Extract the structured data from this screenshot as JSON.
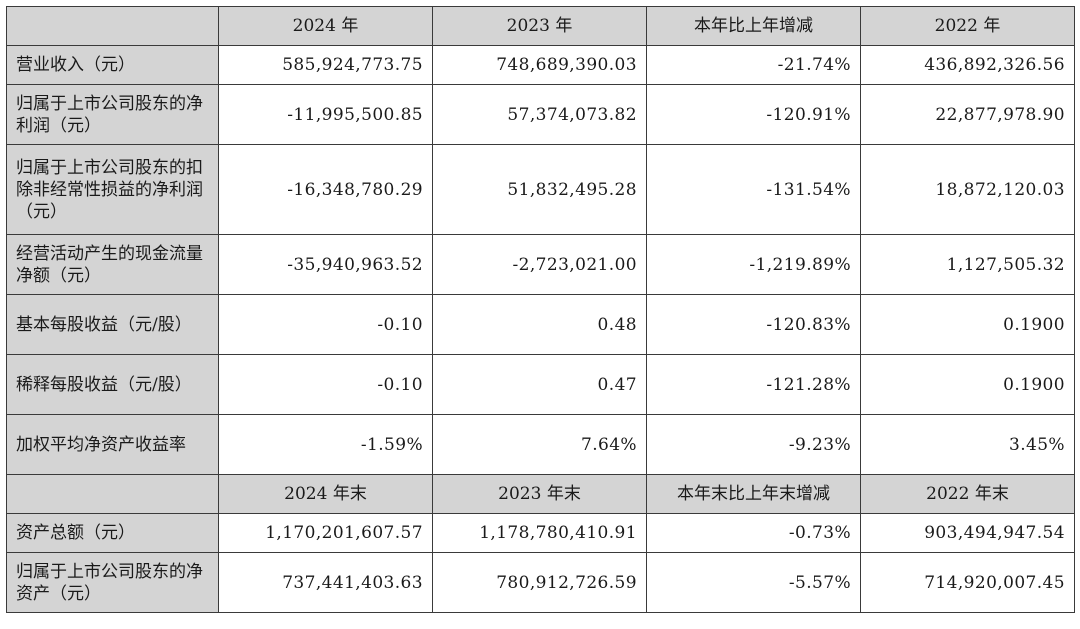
{
  "header_top": [
    "",
    "2024 年",
    "2023 年",
    "本年比上年增减",
    "2022 年"
  ],
  "rows_top": [
    {
      "label": "营业收入（元）",
      "v2024": "585,924,773.75",
      "v2023": "748,689,390.03",
      "change": "-21.74%",
      "v2022": "436,892,326.56"
    },
    {
      "label": "归属于上市公司股东的净利润（元）",
      "v2024": "-11,995,500.85",
      "v2023": "57,374,073.82",
      "change": "-120.91%",
      "v2022": "22,877,978.90"
    },
    {
      "label": "归属于上市公司股东的扣除非经常性损益的净利润（元）",
      "v2024": "-16,348,780.29",
      "v2023": "51,832,495.28",
      "change": "-131.54%",
      "v2022": "18,872,120.03"
    },
    {
      "label": "经营活动产生的现金流量净额（元）",
      "v2024": "-35,940,963.52",
      "v2023": "-2,723,021.00",
      "change": "-1,219.89%",
      "v2022": "1,127,505.32"
    },
    {
      "label": "基本每股收益（元/股）",
      "v2024": "-0.10",
      "v2023": "0.48",
      "change": "-120.83%",
      "v2022": "0.1900"
    },
    {
      "label": "稀释每股收益（元/股）",
      "v2024": "-0.10",
      "v2023": "0.47",
      "change": "-121.28%",
      "v2022": "0.1900"
    },
    {
      "label": "加权平均净资产收益率",
      "v2024": "-1.59%",
      "v2023": "7.64%",
      "change": "-9.23%",
      "v2022": "3.45%"
    }
  ],
  "header_bottom": [
    "",
    "2024 年末",
    "2023 年末",
    "本年末比上年末增减",
    "2022 年末"
  ],
  "rows_bottom": [
    {
      "label": "资产总额（元）",
      "v2024": "1,170,201,607.57",
      "v2023": "1,178,780,410.91",
      "change": "-0.73%",
      "v2022": "903,494,947.54"
    },
    {
      "label": "归属于上市公司股东的净资产（元）",
      "v2024": "737,441,403.63",
      "v2023": "780,912,726.59",
      "change": "-5.57%",
      "v2022": "714,920,007.45"
    }
  ]
}
